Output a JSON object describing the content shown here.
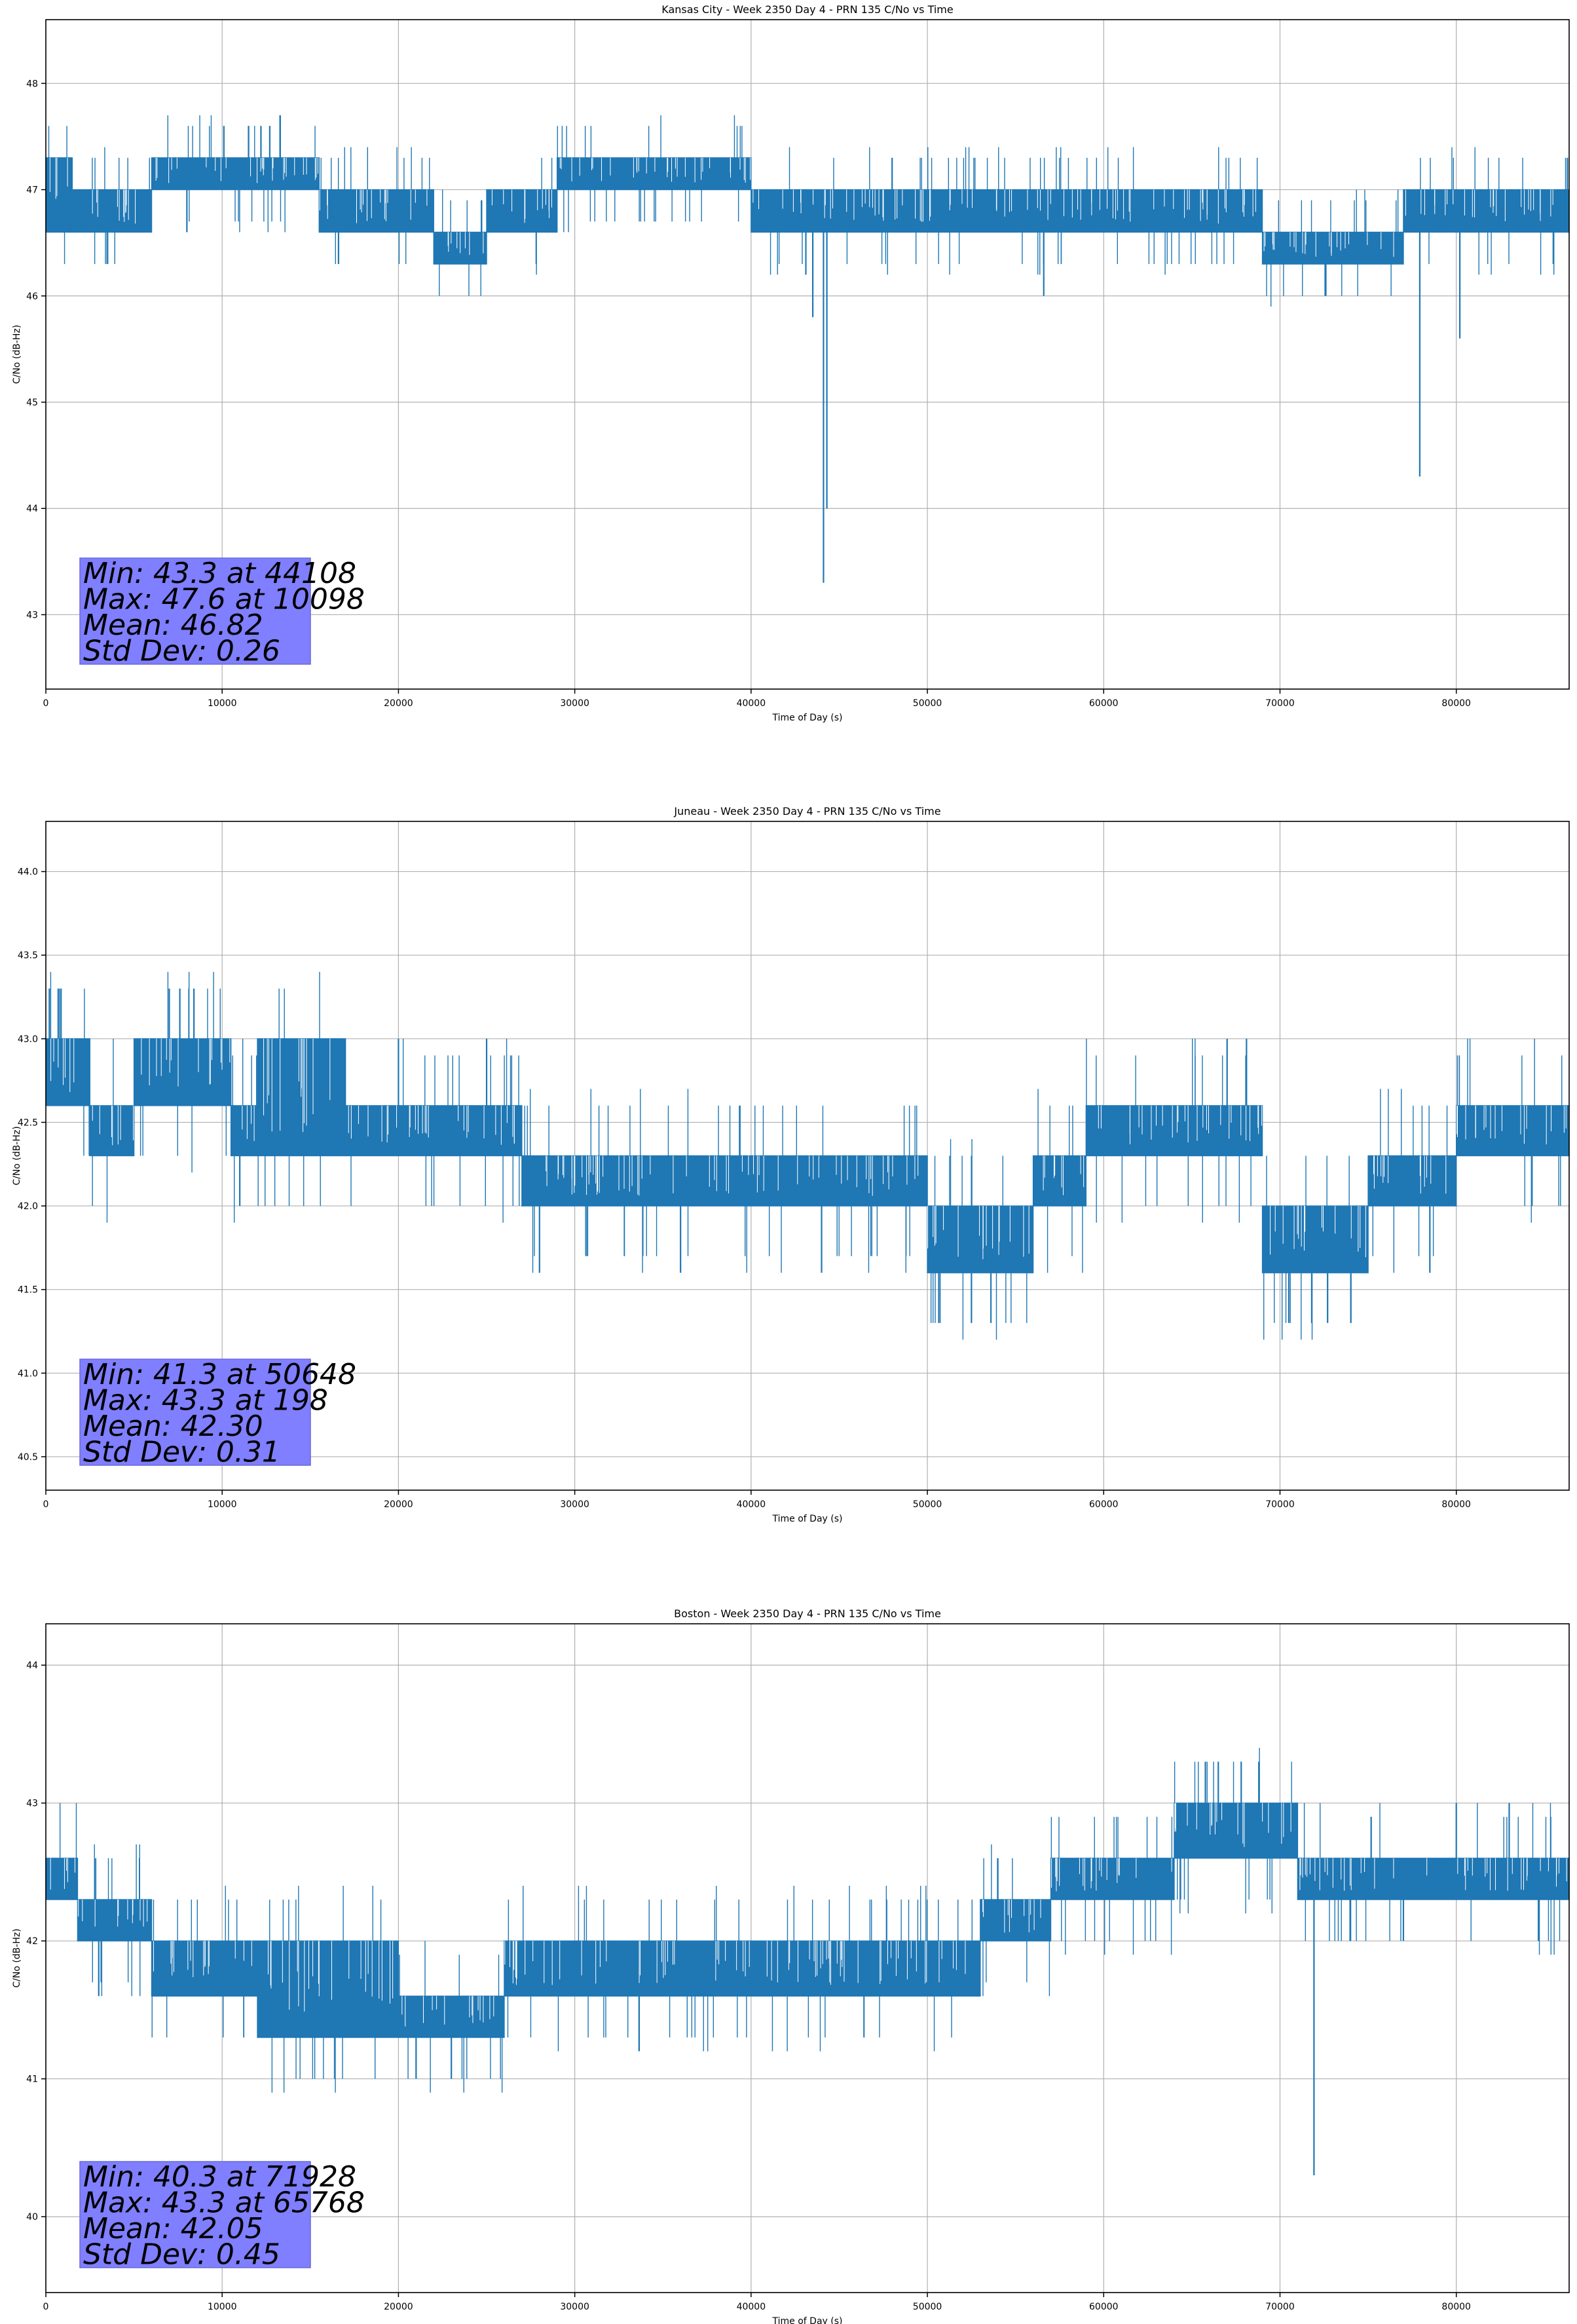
{
  "chart_data": [
    {
      "type": "line",
      "title": "Kansas City - Week 2350 Day 4 - PRN 135 C/No vs Time",
      "xlabel": "Time of Day (s)",
      "ylabel": "C/No (dB-Hz)",
      "xlim": [
        0,
        86400
      ],
      "ylim": [
        42.3,
        48.6
      ],
      "xticks": [
        0,
        10000,
        20000,
        30000,
        40000,
        50000,
        60000,
        70000,
        80000
      ],
      "yticks": [
        43,
        44,
        45,
        46,
        47,
        48
      ],
      "ytick_decimals": 0,
      "grid": true,
      "color": "#1f77b4",
      "stats": [
        "Min: 43.3 at 44108",
        "Max: 47.6 at 10098",
        "Mean: 46.82",
        "Std Dev: 0.26"
      ],
      "segments": [
        {
          "x0": 0,
          "x1": 1500,
          "lo": 46.6,
          "hi": 47.3
        },
        {
          "x0": 1500,
          "x1": 6000,
          "lo": 46.6,
          "hi": 47.0
        },
        {
          "x0": 6000,
          "x1": 15500,
          "lo": 47.0,
          "hi": 47.3
        },
        {
          "x0": 15500,
          "x1": 22000,
          "lo": 46.6,
          "hi": 47.0
        },
        {
          "x0": 22000,
          "x1": 25000,
          "lo": 46.3,
          "hi": 46.6
        },
        {
          "x0": 25000,
          "x1": 29000,
          "lo": 46.6,
          "hi": 47.0
        },
        {
          "x0": 29000,
          "x1": 40000,
          "lo": 47.0,
          "hi": 47.3
        },
        {
          "x0": 40000,
          "x1": 66000,
          "lo": 46.6,
          "hi": 47.0
        },
        {
          "x0": 66000,
          "x1": 69000,
          "lo": 46.6,
          "hi": 47.0
        },
        {
          "x0": 69000,
          "x1": 77000,
          "lo": 46.3,
          "hi": 46.6
        },
        {
          "x0": 77000,
          "x1": 86400,
          "lo": 46.6,
          "hi": 47.0
        }
      ],
      "spikes": [
        {
          "x": 10098,
          "y": 47.6
        },
        {
          "x": 11500,
          "y": 47.6
        },
        {
          "x": 12200,
          "y": 47.6
        },
        {
          "x": 12700,
          "y": 47.6
        },
        {
          "x": 44108,
          "y": 43.3
        },
        {
          "x": 44300,
          "y": 44.0
        },
        {
          "x": 43500,
          "y": 45.8
        },
        {
          "x": 77928,
          "y": 44.3
        },
        {
          "x": 80200,
          "y": 45.6
        },
        {
          "x": 56600,
          "y": 46.0
        },
        {
          "x": 72600,
          "y": 46.0
        },
        {
          "x": 16600,
          "y": 46.3
        },
        {
          "x": 86300,
          "y": 47.3
        },
        {
          "x": 48000,
          "y": 47.3
        },
        {
          "x": 8000,
          "y": 46.6
        }
      ]
    },
    {
      "type": "line",
      "title": "Juneau - Week 2350 Day 4 - PRN 135 C/No vs Time",
      "xlabel": "Time of Day (s)",
      "ylabel": "C/No (dB-Hz)",
      "xlim": [
        0,
        86400
      ],
      "ylim": [
        40.3,
        44.3
      ],
      "xticks": [
        0,
        10000,
        20000,
        30000,
        40000,
        50000,
        60000,
        70000,
        80000
      ],
      "yticks": [
        40.5,
        41.0,
        41.5,
        42.0,
        42.5,
        43.0,
        43.5,
        44.0
      ],
      "ytick_decimals": 1,
      "grid": true,
      "color": "#1f77b4",
      "stats": [
        "Min: 41.3 at 50648",
        "Max: 43.3 at 198",
        "Mean: 42.30",
        "Std Dev: 0.31"
      ],
      "segments": [
        {
          "x0": 0,
          "x1": 2500,
          "lo": 42.6,
          "hi": 43.0
        },
        {
          "x0": 2500,
          "x1": 5000,
          "lo": 42.3,
          "hi": 42.6
        },
        {
          "x0": 5000,
          "x1": 10500,
          "lo": 42.6,
          "hi": 43.0
        },
        {
          "x0": 10500,
          "x1": 12000,
          "lo": 42.3,
          "hi": 42.6
        },
        {
          "x0": 12000,
          "x1": 17000,
          "lo": 42.3,
          "hi": 43.0
        },
        {
          "x0": 17000,
          "x1": 27000,
          "lo": 42.3,
          "hi": 42.6
        },
        {
          "x0": 27000,
          "x1": 50000,
          "lo": 42.0,
          "hi": 42.3
        },
        {
          "x0": 50000,
          "x1": 56000,
          "lo": 41.6,
          "hi": 42.0
        },
        {
          "x0": 56000,
          "x1": 59000,
          "lo": 42.0,
          "hi": 42.3
        },
        {
          "x0": 59000,
          "x1": 69000,
          "lo": 42.3,
          "hi": 42.6
        },
        {
          "x0": 69000,
          "x1": 75000,
          "lo": 41.6,
          "hi": 42.0
        },
        {
          "x0": 75000,
          "x1": 80000,
          "lo": 42.0,
          "hi": 42.3
        },
        {
          "x0": 80000,
          "x1": 86400,
          "lo": 42.3,
          "hi": 42.6
        }
      ],
      "spikes": [
        {
          "x": 198,
          "y": 43.3
        },
        {
          "x": 700,
          "y": 43.3
        },
        {
          "x": 800,
          "y": 43.3
        },
        {
          "x": 7000,
          "y": 43.3
        },
        {
          "x": 7600,
          "y": 43.3
        },
        {
          "x": 8400,
          "y": 43.3
        },
        {
          "x": 50648,
          "y": 41.3
        },
        {
          "x": 52500,
          "y": 41.3
        },
        {
          "x": 70500,
          "y": 41.3
        },
        {
          "x": 71800,
          "y": 41.3
        },
        {
          "x": 72700,
          "y": 41.3
        },
        {
          "x": 67000,
          "y": 43.0
        },
        {
          "x": 68100,
          "y": 43.0
        },
        {
          "x": 11000,
          "y": 42.0
        },
        {
          "x": 28000,
          "y": 41.6
        },
        {
          "x": 36000,
          "y": 41.6
        },
        {
          "x": 44000,
          "y": 41.6
        },
        {
          "x": 78500,
          "y": 41.6
        },
        {
          "x": 20000,
          "y": 43.0
        },
        {
          "x": 25000,
          "y": 43.0
        }
      ]
    },
    {
      "type": "line",
      "title": "Boston - Week 2350 Day 4 - PRN 135 C/No vs Time",
      "xlabel": "Time of Day (s)",
      "ylabel": "C/No (dB-Hz)",
      "xlim": [
        0,
        86400
      ],
      "ylim": [
        39.45,
        44.3
      ],
      "xticks": [
        0,
        10000,
        20000,
        30000,
        40000,
        50000,
        60000,
        70000,
        80000
      ],
      "yticks": [
        40,
        41,
        42,
        43,
        44
      ],
      "ytick_decimals": 0,
      "grid": true,
      "color": "#1f77b4",
      "stats": [
        "Min: 40.3 at 71928",
        "Max: 43.3 at 65768",
        "Mean: 42.05",
        "Std Dev: 0.45"
      ],
      "segments": [
        {
          "x0": 0,
          "x1": 1800,
          "lo": 42.3,
          "hi": 42.6
        },
        {
          "x0": 1800,
          "x1": 6000,
          "lo": 42.0,
          "hi": 42.3
        },
        {
          "x0": 6000,
          "x1": 12000,
          "lo": 41.6,
          "hi": 42.0
        },
        {
          "x0": 12000,
          "x1": 20000,
          "lo": 41.3,
          "hi": 42.0
        },
        {
          "x0": 20000,
          "x1": 26000,
          "lo": 41.3,
          "hi": 41.6
        },
        {
          "x0": 26000,
          "x1": 31000,
          "lo": 41.6,
          "hi": 42.0
        },
        {
          "x0": 31000,
          "x1": 53000,
          "lo": 41.6,
          "hi": 42.0
        },
        {
          "x0": 53000,
          "x1": 57000,
          "lo": 42.0,
          "hi": 42.3
        },
        {
          "x0": 57000,
          "x1": 64000,
          "lo": 42.3,
          "hi": 42.6
        },
        {
          "x0": 64000,
          "x1": 71000,
          "lo": 42.6,
          "hi": 43.0
        },
        {
          "x0": 71000,
          "x1": 86400,
          "lo": 42.3,
          "hi": 42.6
        }
      ],
      "spikes": [
        {
          "x": 65768,
          "y": 43.3
        },
        {
          "x": 66500,
          "y": 43.3
        },
        {
          "x": 67800,
          "y": 43.3
        },
        {
          "x": 68800,
          "y": 43.3
        },
        {
          "x": 71928,
          "y": 40.3
        },
        {
          "x": 21000,
          "y": 41.0
        },
        {
          "x": 23000,
          "y": 41.0
        },
        {
          "x": 3000,
          "y": 41.6
        },
        {
          "x": 80000,
          "y": 43.0
        },
        {
          "x": 83000,
          "y": 43.0
        },
        {
          "x": 74000,
          "y": 42.0
        },
        {
          "x": 77000,
          "y": 42.0
        }
      ]
    }
  ]
}
